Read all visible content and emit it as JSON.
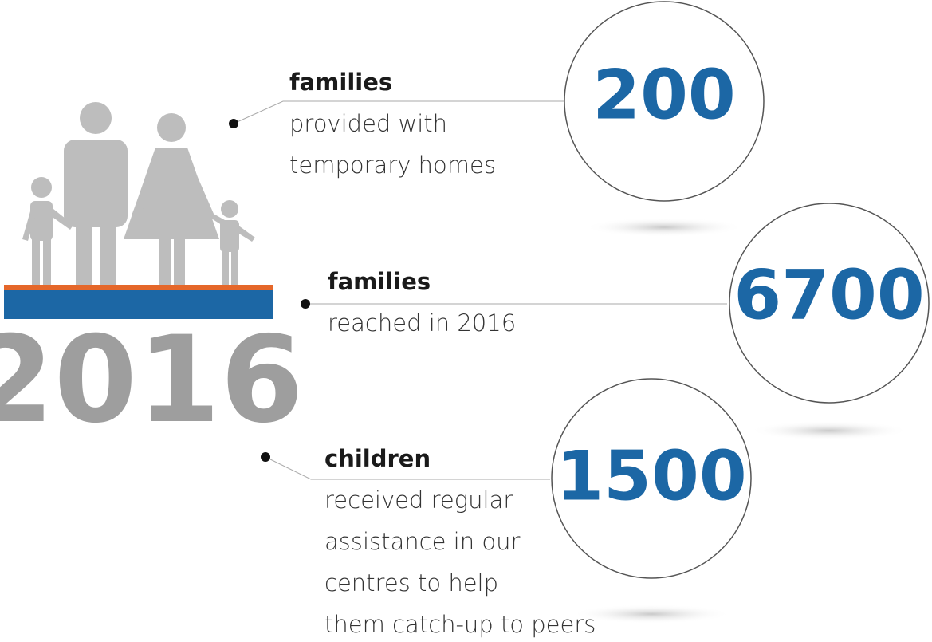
{
  "year": 2016,
  "items": [
    {
      "number": 200,
      "heading": "families",
      "lines": [
        "provided with",
        "temporary homes"
      ]
    },
    {
      "number": 6700,
      "heading": "families",
      "lines": [
        "reached in 2016"
      ]
    },
    {
      "number": 1500,
      "heading": "children",
      "lines": [
        "received regular",
        "assistance in our",
        "centres to help",
        "them catch-up to peers"
      ]
    }
  ]
}
